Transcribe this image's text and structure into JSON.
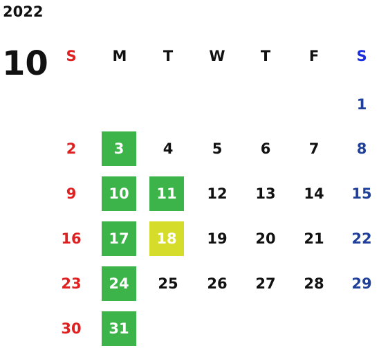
{
  "calendar": {
    "year": "2022",
    "month": "10",
    "weekdays": [
      "S",
      "M",
      "T",
      "W",
      "T",
      "F",
      "S"
    ],
    "weeks": [
      [
        "",
        "",
        "",
        "",
        "",
        "",
        "1"
      ],
      [
        "2",
        "3",
        "4",
        "5",
        "6",
        "7",
        "8"
      ],
      [
        "9",
        "10",
        "11",
        "12",
        "13",
        "14",
        "15"
      ],
      [
        "16",
        "17",
        "18",
        "19",
        "20",
        "21",
        "22"
      ],
      [
        "23",
        "24",
        "25",
        "26",
        "27",
        "28",
        "29"
      ],
      [
        "30",
        "31",
        "",
        "",
        "",
        "",
        ""
      ]
    ],
    "highlight_colors": {
      "green": "#3cb44a",
      "yellow": "#d6dc2a"
    },
    "weekend_colors": {
      "sunday": "#e02020",
      "saturday": "#1f3f99"
    }
  }
}
